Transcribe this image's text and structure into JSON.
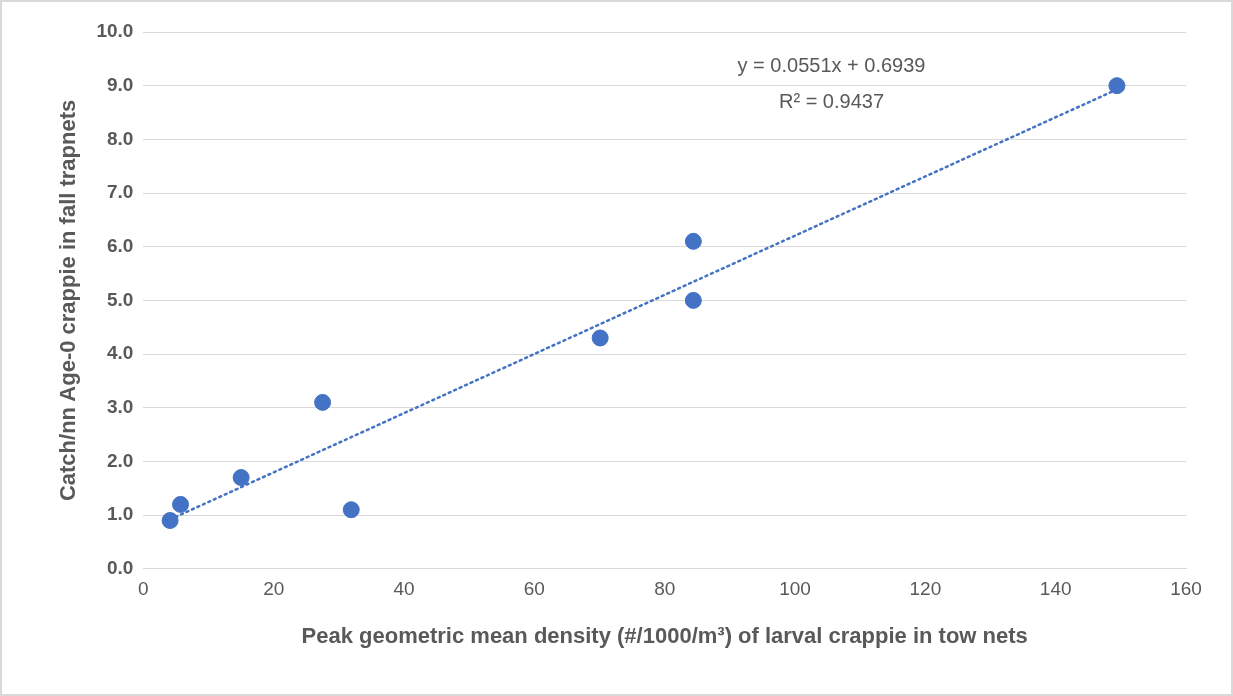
{
  "chart_data": {
    "type": "scatter",
    "xlabel": "Peak geometric mean density (#/1000/m³) of larval crappie in tow nets",
    "ylabel": "Catch/nn Age-0 crappie in fall trapnets",
    "x": [
      4.1,
      5.7,
      15.0,
      27.5,
      31.9,
      70.1,
      84.4,
      84.4,
      149.4
    ],
    "series": [
      {
        "type": "scatter",
        "color": "#4472c4",
        "values": [
          0.9,
          1.2,
          1.7,
          3.1,
          1.1,
          4.3,
          6.1,
          5.0,
          9.0
        ],
        "marker": "circle"
      },
      {
        "type": "line",
        "color": "#4472c4",
        "x": [
          4.1,
          149.4
        ],
        "values": [
          0.92,
          8.93
        ],
        "line_style": "dotted",
        "marker": "none"
      }
    ],
    "xlim": [
      0,
      160
    ],
    "xticks": [
      0,
      20,
      40,
      60,
      80,
      100,
      120,
      140,
      160
    ],
    "ylim": [
      0,
      10
    ],
    "yticks": [
      {
        "value": 0,
        "label": "0.0"
      },
      {
        "value": 1,
        "label": "1.0"
      },
      {
        "value": 2,
        "label": "2.0"
      },
      {
        "value": 3,
        "label": "3.0"
      },
      {
        "value": 4,
        "label": "4.0"
      },
      {
        "value": 5,
        "label": "5.0"
      },
      {
        "value": 6,
        "label": "6.0"
      },
      {
        "value": 7,
        "label": "7.0"
      },
      {
        "value": 8,
        "label": "8.0"
      },
      {
        "value": 9,
        "label": "9.0"
      },
      {
        "value": 10,
        "label": "10.0"
      }
    ],
    "grid": "y",
    "legend": false,
    "annotations": [
      "y = 0.0551x + 0.6939",
      "R² = 0.9437"
    ]
  }
}
